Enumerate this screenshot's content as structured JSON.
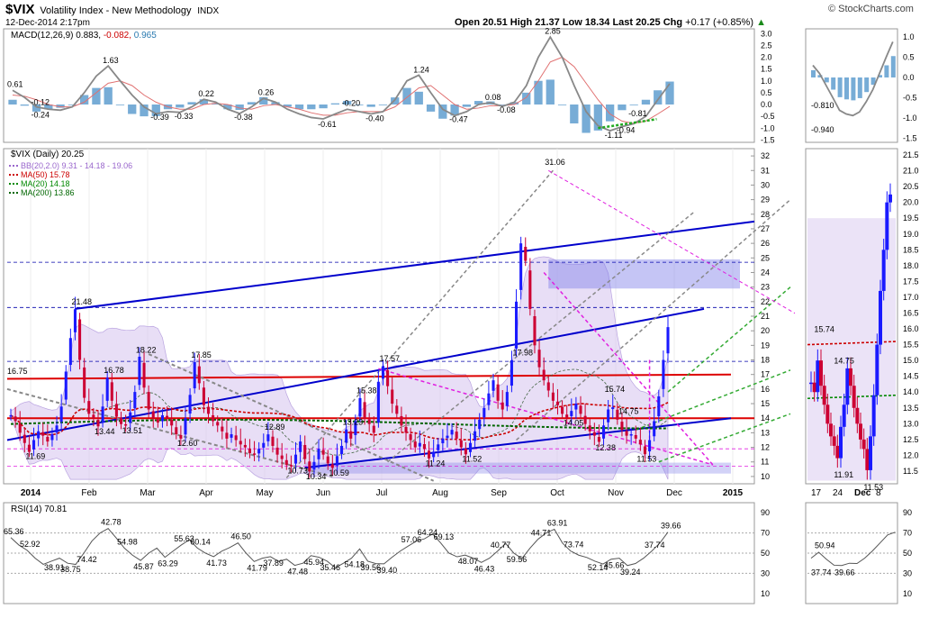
{
  "header": {
    "symbol": "$VIX",
    "name": "Volatility Index - New Methodology",
    "exchange": "INDX",
    "date": "12-Dec-2014 2:17pm",
    "copyright": "© StockCharts.com",
    "quote": "Open 20.51  High 21.37  Low 18.34  Last 20.25  Chg",
    "change": "+0.17 (+0.85%)",
    "change_arrow": "▲"
  },
  "colors": {
    "up": "#1a1aff",
    "down": "#cc0033",
    "bb_fill": "#d8c8f0",
    "ma50": "#cc0000",
    "ma20": "#008800",
    "ma200": "#006600",
    "trend": "#0000cc",
    "magenta": "#e020e0",
    "grey_channel": "#888888",
    "macd_line": "#888888",
    "signal": "#e07070",
    "hist": "#4a90c8"
  },
  "chart_data": [
    {
      "type": "line",
      "panel": "MACD",
      "title": "MACD(12,26,9)",
      "legend_values": [
        "0.883",
        "-0.082",
        "0.965"
      ],
      "yticks": [
        "3.0",
        "2.5",
        "2.0",
        "1.5",
        "1.0",
        "0.5",
        "0.0",
        "-0.5",
        "-1.0",
        "-1.5"
      ],
      "ylim": [
        -1.6,
        3.2
      ],
      "annotations": [
        "0.61",
        "-0.12",
        "-0.24",
        "1.63",
        "-0.39",
        "-0.33",
        "0.22",
        "-0.38",
        "0.26",
        "-0.61",
        "-0.20",
        "-0.40",
        "1.24",
        "-0.47",
        "0.08",
        "-0.08",
        "2.85",
        "-1.11",
        "-0.94",
        "-0.81"
      ],
      "macd": [
        0.6,
        0.3,
        -0.1,
        -0.2,
        -0.24,
        -0.1,
        0.5,
        1.2,
        1.63,
        1.0,
        0.4,
        -0.1,
        -0.39,
        -0.3,
        -0.33,
        -0.1,
        0.22,
        0.1,
        -0.2,
        -0.38,
        -0.1,
        0.26,
        0.1,
        -0.2,
        -0.4,
        -0.55,
        -0.61,
        -0.4,
        -0.2,
        -0.3,
        -0.4,
        -0.3,
        0.2,
        1.0,
        1.24,
        0.5,
        -0.2,
        -0.47,
        -0.3,
        0.0,
        0.08,
        -0.08,
        0.1,
        0.8,
        2.0,
        2.85,
        2.0,
        0.8,
        -0.3,
        -0.9,
        -1.11,
        -0.94,
        -0.81,
        -0.5,
        0.2,
        0.88
      ],
      "signal": [
        0.4,
        0.35,
        0.2,
        0.0,
        -0.1,
        -0.1,
        0.1,
        0.5,
        0.9,
        1.0,
        0.8,
        0.4,
        0.1,
        -0.1,
        -0.2,
        -0.2,
        0.0,
        0.05,
        0.0,
        -0.15,
        -0.2,
        -0.05,
        0.0,
        -0.1,
        -0.2,
        -0.35,
        -0.45,
        -0.45,
        -0.35,
        -0.3,
        -0.3,
        -0.3,
        -0.1,
        0.3,
        0.7,
        0.8,
        0.4,
        0.0,
        -0.2,
        -0.15,
        -0.05,
        -0.05,
        0.0,
        0.3,
        1.0,
        1.8,
        2.0,
        1.6,
        0.9,
        0.2,
        -0.4,
        -0.7,
        -0.8,
        -0.7,
        -0.4,
        -0.08
      ],
      "histogram": [
        0.2,
        -0.05,
        -0.3,
        -0.2,
        -0.14,
        0.0,
        0.4,
        0.7,
        0.73,
        0.0,
        -0.4,
        -0.5,
        -0.49,
        -0.2,
        -0.13,
        0.1,
        0.22,
        0.05,
        -0.2,
        -0.23,
        0.1,
        0.31,
        0.1,
        -0.1,
        -0.2,
        -0.2,
        -0.16,
        0.05,
        0.15,
        0.0,
        -0.1,
        0.0,
        0.3,
        0.7,
        0.54,
        -0.3,
        -0.6,
        -0.47,
        -0.1,
        0.15,
        0.13,
        -0.03,
        0.1,
        0.5,
        1.0,
        1.05,
        0.0,
        -0.8,
        -1.2,
        -1.1,
        -0.71,
        -0.24,
        -0.01,
        0.2,
        0.6,
        0.97
      ]
    },
    {
      "type": "candlestick",
      "panel": "Price",
      "title": "$VIX (Daily) 20.25",
      "legend": [
        {
          "label": "BB(20,2.0) 9.31 - 14.18 - 19.06",
          "color": "#9966cc"
        },
        {
          "label": "MA(50) 15.78",
          "color": "#cc0000"
        },
        {
          "label": "MA(20) 14.18",
          "color": "#008800"
        },
        {
          "label": "MA(200) 13.86",
          "color": "#006600"
        }
      ],
      "yticks": [
        "32",
        "31",
        "30",
        "29",
        "28",
        "27",
        "26",
        "25",
        "24",
        "23",
        "22",
        "21",
        "20",
        "19",
        "18",
        "17",
        "16",
        "15",
        "14",
        "13",
        "12",
        "11",
        "10"
      ],
      "ylim": [
        9.5,
        32.5
      ],
      "xticks": [
        "2014",
        "Feb",
        "Mar",
        "Apr",
        "May",
        "Jun",
        "Jul",
        "Aug",
        "Sep",
        "Oct",
        "Nov",
        "Dec",
        "2015"
      ],
      "annotations": [
        "16.75",
        "11.69",
        "21.48",
        "13.44",
        "16.78",
        "18.22",
        "13.51",
        "17.85",
        "12.60",
        "12.89",
        "10.73",
        "10.34",
        "10.59",
        "17.57",
        "15.38",
        "13.23",
        "11.24",
        "11.52",
        "17.98",
        "31.06",
        "14.05",
        "15.74",
        "14.75",
        "12.38",
        "11.53"
      ],
      "close": [
        14.2,
        13.8,
        13.0,
        12.3,
        11.69,
        12.5,
        13.1,
        12.8,
        12.4,
        12.9,
        13.5,
        14.8,
        17.2,
        19.5,
        21.48,
        18.0,
        15.4,
        14.3,
        14.0,
        13.44,
        14.8,
        16.78,
        15.2,
        14.1,
        13.6,
        13.51,
        14.4,
        15.8,
        18.22,
        16.1,
        14.6,
        14.0,
        13.7,
        14.2,
        14.0,
        13.5,
        12.9,
        12.6,
        14.0,
        15.6,
        17.85,
        16.4,
        14.9,
        14.3,
        13.8,
        13.5,
        13.1,
        12.6,
        12.9,
        12.5,
        12.2,
        12.0,
        11.6,
        11.5,
        11.9,
        12.3,
        12.89,
        12.1,
        11.5,
        11.2,
        10.8,
        10.73,
        11.5,
        12.4,
        11.2,
        10.34,
        11.0,
        11.9,
        11.5,
        10.9,
        10.59,
        11.4,
        12.1,
        13.23,
        12.6,
        13.8,
        15.38,
        14.0,
        13.6,
        13.0,
        16.5,
        17.57,
        16.2,
        15.0,
        14.3,
        13.5,
        13.0,
        12.5,
        12.0,
        12.3,
        11.9,
        11.24,
        11.7,
        12.2,
        12.6,
        12.8,
        13.2,
        12.6,
        12.0,
        11.52,
        12.3,
        13.1,
        13.9,
        14.7,
        15.7,
        16.6,
        15.2,
        14.6,
        15.8,
        17.98,
        22.0,
        26.0,
        24.8,
        21.5,
        19.0,
        17.5,
        16.6,
        15.9,
        15.2,
        14.9,
        14.3,
        14.05,
        14.5,
        15.0,
        14.3,
        13.6,
        13.1,
        12.8,
        12.38,
        13.5,
        14.6,
        14.75,
        13.9,
        13.2,
        12.8,
        12.9,
        12.6,
        12.2,
        11.53,
        12.5,
        13.8,
        15.5,
        18.0,
        20.25
      ]
    },
    {
      "type": "line",
      "panel": "RSI",
      "title": "RSI(14) 70.81",
      "yticks": [
        "90",
        "70",
        "50",
        "30",
        "10"
      ],
      "ylim": [
        0,
        100
      ],
      "annotations": [
        "65.36",
        "52.92",
        "38.91",
        "38.75",
        "74.42",
        "42.78",
        "54.98",
        "45.87",
        "63.29",
        "55.63",
        "60.14",
        "41.73",
        "46.50",
        "41.79",
        "37.89",
        "47.48",
        "45.94",
        "35.46",
        "54.18",
        "39.56",
        "39.40",
        "57.06",
        "64.24",
        "69.13",
        "48.07",
        "46.43",
        "40.77",
        "59.56",
        "44.71",
        "63.91",
        "73.74",
        "52.14",
        "45.66",
        "39.24",
        "37.74",
        "39.66"
      ],
      "values": [
        65.4,
        58,
        52.9,
        45,
        38.9,
        42,
        45,
        40,
        38.8,
        50,
        62,
        70,
        74.4,
        65,
        55,
        48,
        42.8,
        50,
        55,
        45.9,
        52,
        58,
        63.3,
        55,
        50,
        46.5,
        52,
        55.6,
        60.1,
        50,
        41.7,
        45,
        46.5,
        41.8,
        44,
        37.9,
        40,
        47.5,
        45.9,
        42,
        35.5,
        40,
        45,
        54.2,
        42,
        39.6,
        39.4,
        46,
        52,
        57.1,
        62,
        64.2,
        69.1,
        60,
        50,
        46.4,
        48.1,
        45,
        40.8,
        45,
        52,
        59.6,
        50,
        44.7,
        55,
        63.9,
        70,
        73.7,
        60,
        52.1,
        48,
        45.7,
        42,
        39.2,
        44,
        45,
        37.7,
        39.7,
        45,
        52,
        60,
        70.8
      ]
    },
    {
      "type": "candlestick",
      "panel": "Zoom",
      "xticks": [
        "17",
        "24",
        "Dec",
        "8"
      ],
      "yticks": [
        "21.5",
        "21.0",
        "20.5",
        "20.0",
        "19.5",
        "19.0",
        "18.5",
        "18.0",
        "17.5",
        "17.0",
        "16.5",
        "16.0",
        "15.5",
        "15.0",
        "14.5",
        "14.0",
        "13.5",
        "13.0",
        "12.5",
        "12.0",
        "11.5"
      ],
      "ylim": [
        11.1,
        21.7
      ],
      "annotations": [
        "15.74",
        "14.75",
        "11.91",
        "11.53"
      ],
      "close": [
        14.3,
        14.0,
        15.0,
        14.2,
        13.6,
        13.0,
        12.6,
        12.3,
        11.91,
        12.9,
        13.6,
        14.75,
        14.2,
        13.5,
        13.0,
        12.5,
        12.2,
        11.53,
        12.6,
        13.9,
        15.5,
        17.2,
        18.5,
        20.0,
        20.25
      ],
      "macd_annotations": [
        "-0.810",
        "-0.940"
      ],
      "macd_yticks": [
        "1.0",
        "0.5",
        "0.0",
        "-0.5",
        "-1.0",
        "-1.5"
      ],
      "rsi_annotations": [
        "50.94",
        "37.74",
        "39.66"
      ],
      "rsi_yticks": [
        "90",
        "70",
        "50",
        "30",
        "10"
      ]
    }
  ]
}
